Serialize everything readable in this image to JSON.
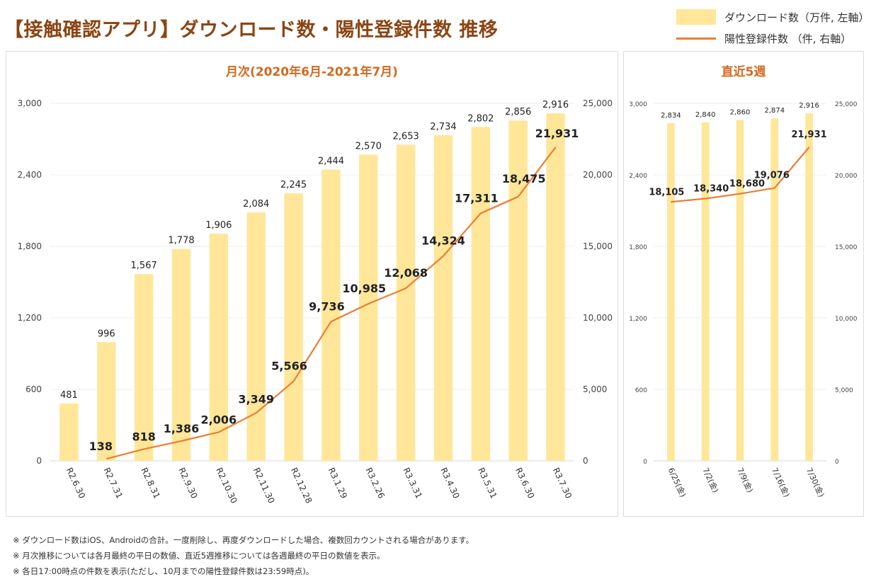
{
  "title": "【接触確認アプリ】ダウンロード数・陽性登録件数 推移",
  "legend": {
    "bar_label": "ダウンロード数（万件, 左軸）",
    "line_label": "陽性登録件数 （件, 右軸）"
  },
  "colors": {
    "bar": "#ffe699",
    "line": "#ed7d31",
    "title": "#8b4513",
    "panel_title": "#d2691e"
  },
  "chart_data": [
    {
      "type": "bar",
      "title": "月次(2020年6月-2021年7月)",
      "categories": [
        "R2.6.30",
        "R2.7.31",
        "R2.8.31",
        "R2.9.30",
        "R2.10.30",
        "R2.11.30",
        "R2.12.28",
        "R3.1.29",
        "R3.2.26",
        "R3.3.31",
        "R3.4.30",
        "R3.5.31",
        "R3.6.30",
        "R3.7.30"
      ],
      "series": [
        {
          "name": "ダウンロード数（万件, 左軸）",
          "axis": "left",
          "type": "bar",
          "values": [
            481,
            996,
            1567,
            1778,
            1906,
            2084,
            2245,
            2444,
            2570,
            2653,
            2734,
            2802,
            2856,
            2916
          ],
          "labels": [
            "481",
            "996",
            "1,567",
            "1,778",
            "1,906",
            "2,084",
            "2,245",
            "2,444",
            "2,570",
            "2,653",
            "2,734",
            "2,802",
            "2,856",
            "2,916"
          ]
        },
        {
          "name": "陽性登録件数 （件, 右軸）",
          "axis": "right",
          "type": "line",
          "values": [
            null,
            138,
            818,
            1386,
            2006,
            3349,
            5566,
            9736,
            10985,
            12068,
            14324,
            17311,
            18475,
            21931
          ],
          "labels": [
            "",
            "138",
            "818",
            "1,386",
            "2,006",
            "3,349",
            "5,566",
            "9,736",
            "10,985",
            "12,068",
            "14,324",
            "17,311",
            "18,475",
            "21,931"
          ]
        }
      ],
      "y_left": {
        "min": 0,
        "max": 3000,
        "ticks": [
          0,
          600,
          1200,
          1800,
          2400,
          3000
        ],
        "tick_labels": [
          "0",
          "600",
          "1,200",
          "1,800",
          "2,400",
          "3,000"
        ]
      },
      "y_right": {
        "min": 0,
        "max": 25000,
        "ticks": [
          0,
          5000,
          10000,
          15000,
          20000,
          25000
        ],
        "tick_labels": [
          "0",
          "5,000",
          "10,000",
          "15,000",
          "20,000",
          "25,000"
        ]
      },
      "grid": true
    },
    {
      "type": "bar",
      "title": "直近5週",
      "categories": [
        "6/25(金)",
        "7/2(金)",
        "7/9(金)",
        "7/16(金)",
        "7/30(金)"
      ],
      "series": [
        {
          "name": "ダウンロード数（万件, 左軸）",
          "axis": "left",
          "type": "bar",
          "values": [
            2834,
            2840,
            2860,
            2874,
            2916
          ],
          "labels": [
            "2,834",
            "2,840",
            "2,860",
            "2,874",
            "2,916"
          ]
        },
        {
          "name": "陽性登録件数 （件, 右軸）",
          "axis": "right",
          "type": "line",
          "values": [
            18105,
            18340,
            18680,
            19076,
            21931
          ],
          "labels": [
            "18,105",
            "18,340",
            "18,680",
            "19,076",
            "21,931"
          ]
        }
      ],
      "y_left": {
        "min": 0,
        "max": 3000,
        "ticks": [
          0,
          600,
          1200,
          1800,
          2400,
          3000
        ],
        "tick_labels": [
          "0",
          "600",
          "1,200",
          "1,800",
          "2,400",
          "3,000"
        ]
      },
      "y_right": {
        "min": 0,
        "max": 25000,
        "ticks": [
          0,
          5000,
          10000,
          15000,
          20000,
          25000
        ],
        "tick_labels": [
          "0",
          "5,000",
          "10,000",
          "15,000",
          "20,000",
          "25,000"
        ]
      },
      "grid": true
    }
  ],
  "footnotes": [
    "※ ダウンロード数はiOS、Androidの合計。一度削除し、再度ダウンロードした場合、複数回カウントされる場合があります。",
    "※ 月次推移については各月最終の平日の数値、直近5週推移については各週最終の平日の数値を表示。",
    "※ 各日17:00時点の件数を表示(ただし、10月までの陽性登録件数は23:59時点)。"
  ]
}
